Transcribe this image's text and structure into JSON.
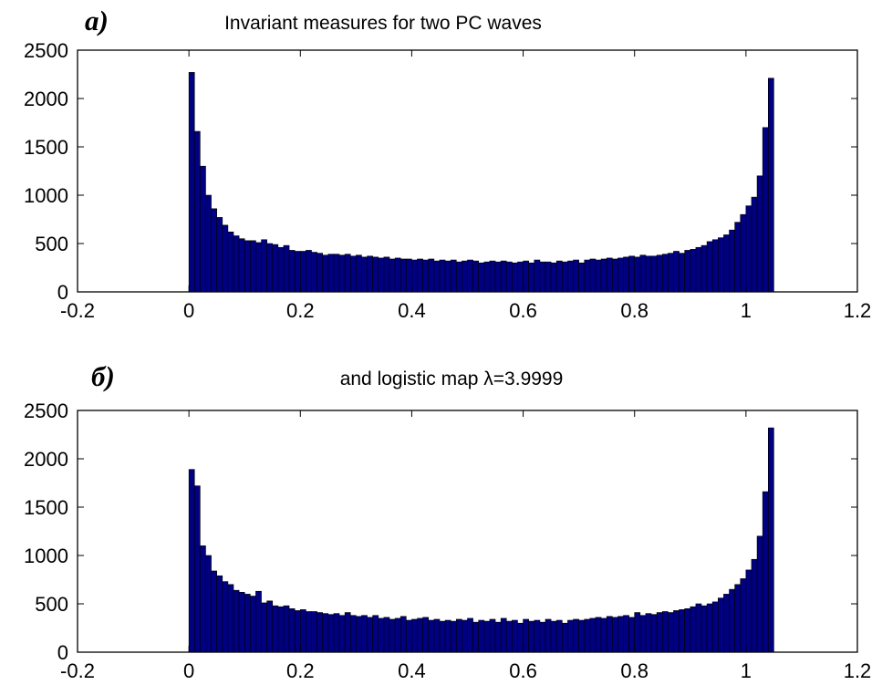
{
  "chart_data": [
    {
      "type": "bar",
      "panel_label": "a)",
      "title": "Invariant measures for two PC waves",
      "xlabel": "",
      "ylabel": "",
      "xlim": [
        -0.2,
        1.2
      ],
      "ylim": [
        0,
        2500
      ],
      "xticks": [
        "-0.2",
        "0",
        "0.2",
        "0.4",
        "0.6",
        "0.8",
        "1",
        "1.2"
      ],
      "yticks": [
        "0",
        "500",
        "1000",
        "1500",
        "2000",
        "2500"
      ],
      "bin_start": 0,
      "bin_width": 0.01,
      "bar_color": "#000080",
      "grid": false,
      "values": [
        2270,
        1660,
        1300,
        1000,
        860,
        770,
        690,
        620,
        580,
        550,
        530,
        530,
        510,
        540,
        500,
        490,
        460,
        480,
        430,
        420,
        420,
        430,
        410,
        400,
        380,
        390,
        390,
        380,
        390,
        370,
        380,
        360,
        370,
        360,
        350,
        360,
        340,
        350,
        340,
        340,
        330,
        340,
        330,
        340,
        320,
        330,
        320,
        330,
        310,
        320,
        330,
        320,
        300,
        310,
        320,
        310,
        320,
        310,
        300,
        310,
        320,
        300,
        330,
        310,
        310,
        300,
        320,
        310,
        320,
        330,
        300,
        330,
        340,
        330,
        340,
        350,
        340,
        350,
        360,
        370,
        360,
        380,
        370,
        370,
        380,
        390,
        400,
        420,
        400,
        430,
        440,
        460,
        480,
        520,
        540,
        560,
        590,
        640,
        720,
        800,
        890,
        980,
        1200,
        1700,
        2210
      ]
    },
    {
      "type": "bar",
      "panel_label": "б)",
      "title": "and logistic map λ=3.9999",
      "xlabel": "",
      "ylabel": "",
      "xlim": [
        -0.2,
        1.2
      ],
      "ylim": [
        0,
        2500
      ],
      "xticks": [
        "-0.2",
        "0",
        "0.2",
        "0.4",
        "0.6",
        "0.8",
        "1",
        "1.2"
      ],
      "yticks": [
        "0",
        "500",
        "1000",
        "1500",
        "2000",
        "2500"
      ],
      "bin_start": 0,
      "bin_width": 0.01,
      "bar_color": "#000080",
      "grid": false,
      "values": [
        1890,
        1720,
        1100,
        1000,
        840,
        790,
        730,
        700,
        640,
        620,
        600,
        580,
        630,
        510,
        530,
        480,
        470,
        480,
        450,
        430,
        440,
        420,
        420,
        410,
        400,
        390,
        400,
        380,
        410,
        380,
        370,
        380,
        360,
        380,
        350,
        360,
        340,
        350,
        370,
        330,
        340,
        350,
        360,
        330,
        340,
        320,
        330,
        320,
        340,
        330,
        350,
        310,
        330,
        320,
        340,
        310,
        350,
        320,
        330,
        300,
        340,
        320,
        330,
        310,
        340,
        320,
        330,
        300,
        330,
        340,
        330,
        340,
        350,
        360,
        350,
        370,
        360,
        370,
        380,
        360,
        410,
        380,
        400,
        390,
        410,
        420,
        410,
        430,
        440,
        450,
        470,
        500,
        480,
        500,
        520,
        560,
        600,
        650,
        700,
        760,
        850,
        960,
        1200,
        1660,
        2320
      ]
    }
  ]
}
